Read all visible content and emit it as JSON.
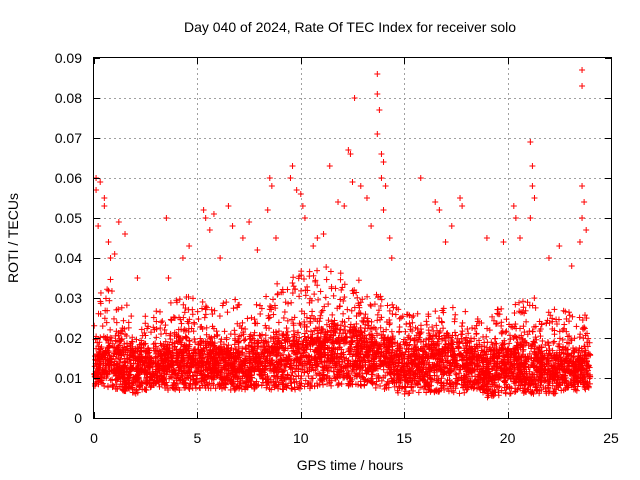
{
  "chart_data": {
    "type": "scatter",
    "title": "Day 040 of 2024, Rate Of TEC Index for receiver solo",
    "xlabel": "GPS time / hours",
    "ylabel": "ROTI / TECUs",
    "xlim": [
      0,
      25
    ],
    "ylim": [
      0,
      0.09
    ],
    "x_ticks": [
      0,
      5,
      10,
      15,
      20,
      25
    ],
    "y_ticks": [
      0,
      0.01,
      0.02,
      0.03,
      0.04,
      0.05,
      0.06,
      0.07,
      0.08,
      0.09
    ],
    "x_tick_labels": [
      "0",
      "5",
      "10",
      "15",
      "20",
      "25"
    ],
    "y_tick_labels": [
      "0",
      "0.01",
      "0.02",
      "0.03",
      "0.04",
      "0.05",
      "0.06",
      "0.07",
      "0.08",
      "0.09"
    ],
    "grid": true,
    "marker": "plus",
    "color": "#ff0000",
    "x_range_of_data": [
      0,
      24
    ],
    "envelope_x": [
      0,
      0.5,
      1,
      2,
      3,
      4,
      5,
      6,
      7,
      8,
      9,
      10,
      11,
      12,
      13,
      14,
      15,
      16,
      17,
      18,
      19,
      20,
      21,
      22,
      23,
      24
    ],
    "envelope_low": [
      0.008,
      0.008,
      0.007,
      0.006,
      0.007,
      0.007,
      0.007,
      0.007,
      0.007,
      0.007,
      0.007,
      0.007,
      0.008,
      0.008,
      0.008,
      0.007,
      0.006,
      0.006,
      0.006,
      0.006,
      0.005,
      0.006,
      0.006,
      0.006,
      0.006,
      0.007
    ],
    "envelope_mid": [
      0.013,
      0.016,
      0.016,
      0.014,
      0.015,
      0.016,
      0.016,
      0.015,
      0.015,
      0.016,
      0.017,
      0.018,
      0.019,
      0.019,
      0.019,
      0.017,
      0.015,
      0.015,
      0.016,
      0.015,
      0.014,
      0.015,
      0.015,
      0.014,
      0.014,
      0.014
    ],
    "envelope_high": [
      0.024,
      0.036,
      0.034,
      0.026,
      0.027,
      0.03,
      0.031,
      0.029,
      0.03,
      0.031,
      0.034,
      0.037,
      0.038,
      0.037,
      0.036,
      0.03,
      0.027,
      0.026,
      0.028,
      0.027,
      0.026,
      0.029,
      0.031,
      0.028,
      0.028,
      0.025
    ],
    "outliers": [
      [
        0.1,
        0.06
      ],
      [
        0.1,
        0.057
      ],
      [
        0.3,
        0.059
      ],
      [
        0.5,
        0.055
      ],
      [
        0.5,
        0.053
      ],
      [
        0.2,
        0.048
      ],
      [
        0.7,
        0.044
      ],
      [
        1.2,
        0.049
      ],
      [
        1.5,
        0.046
      ],
      [
        0.8,
        0.04
      ],
      [
        1.0,
        0.041
      ],
      [
        2.1,
        0.035
      ],
      [
        3.5,
        0.05
      ],
      [
        3.6,
        0.035
      ],
      [
        4.3,
        0.04
      ],
      [
        4.6,
        0.043
      ],
      [
        5.3,
        0.052
      ],
      [
        5.4,
        0.05
      ],
      [
        5.8,
        0.051
      ],
      [
        5.6,
        0.047
      ],
      [
        6.1,
        0.04
      ],
      [
        6.5,
        0.053
      ],
      [
        6.7,
        0.048
      ],
      [
        7.2,
        0.045
      ],
      [
        7.5,
        0.049
      ],
      [
        7.9,
        0.042
      ],
      [
        8.4,
        0.052
      ],
      [
        8.5,
        0.06
      ],
      [
        8.6,
        0.058
      ],
      [
        8.8,
        0.045
      ],
      [
        9.5,
        0.06
      ],
      [
        9.6,
        0.063
      ],
      [
        9.8,
        0.057
      ],
      [
        10.0,
        0.056
      ],
      [
        10.1,
        0.053
      ],
      [
        10.2,
        0.05
      ],
      [
        10.6,
        0.043
      ],
      [
        10.8,
        0.045
      ],
      [
        11.1,
        0.046
      ],
      [
        11.4,
        0.063
      ],
      [
        11.8,
        0.054
      ],
      [
        12.1,
        0.053
      ],
      [
        12.3,
        0.067
      ],
      [
        12.4,
        0.066
      ],
      [
        12.6,
        0.08
      ],
      [
        12.5,
        0.059
      ],
      [
        12.9,
        0.058
      ],
      [
        13.2,
        0.055
      ],
      [
        13.4,
        0.048
      ],
      [
        13.7,
        0.086
      ],
      [
        13.7,
        0.081
      ],
      [
        13.8,
        0.077
      ],
      [
        13.7,
        0.071
      ],
      [
        13.9,
        0.066
      ],
      [
        14.0,
        0.064
      ],
      [
        13.9,
        0.06
      ],
      [
        14.1,
        0.058
      ],
      [
        14.0,
        0.052
      ],
      [
        14.3,
        0.045
      ],
      [
        14.4,
        0.04
      ],
      [
        15.8,
        0.06
      ],
      [
        16.5,
        0.054
      ],
      [
        16.7,
        0.052
      ],
      [
        17.0,
        0.044
      ],
      [
        17.3,
        0.048
      ],
      [
        17.7,
        0.055
      ],
      [
        17.8,
        0.053
      ],
      [
        19.0,
        0.045
      ],
      [
        19.8,
        0.044
      ],
      [
        20.3,
        0.053
      ],
      [
        20.4,
        0.05
      ],
      [
        20.6,
        0.045
      ],
      [
        21.1,
        0.069
      ],
      [
        21.2,
        0.063
      ],
      [
        21.2,
        0.058
      ],
      [
        21.3,
        0.055
      ],
      [
        21.1,
        0.05
      ],
      [
        22.0,
        0.04
      ],
      [
        22.5,
        0.043
      ],
      [
        23.1,
        0.038
      ],
      [
        23.6,
        0.087
      ],
      [
        23.6,
        0.083
      ],
      [
        23.6,
        0.058
      ],
      [
        23.7,
        0.054
      ],
      [
        23.6,
        0.05
      ],
      [
        23.8,
        0.047
      ],
      [
        23.5,
        0.044
      ]
    ]
  }
}
